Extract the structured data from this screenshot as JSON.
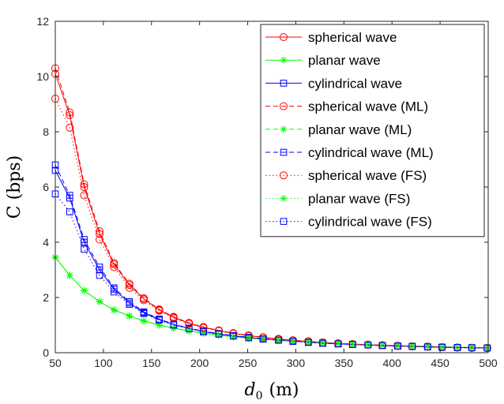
{
  "chart_data": {
    "type": "line",
    "title": "",
    "xlabel": "d_0 (m)",
    "xlabel_main": "d",
    "xlabel_sub": "0",
    "xlabel_unit": "(m)",
    "ylabel": "C (bps)",
    "xlim": [
      50,
      500
    ],
    "ylim": [
      0,
      12
    ],
    "xticks": [
      50,
      100,
      150,
      200,
      250,
      300,
      350,
      400,
      450,
      500
    ],
    "yticks": [
      0,
      2,
      4,
      6,
      8,
      10,
      12
    ],
    "grid": false,
    "legend_position": "top-right",
    "x": [
      50,
      65,
      80,
      96,
      111,
      127,
      142,
      158,
      173,
      189,
      204,
      220,
      235,
      251,
      266,
      282,
      297,
      313,
      328,
      344,
      359,
      375,
      390,
      406,
      421,
      437,
      452,
      468,
      483,
      499
    ],
    "series": [
      {
        "name": "spherical wave",
        "color": "#ff0000",
        "dash": "",
        "marker": "circle",
        "values": [
          10.1,
          8.6,
          6.0,
          4.3,
          3.2,
          2.45,
          1.95,
          1.55,
          1.28,
          1.07,
          0.92,
          0.8,
          0.7,
          0.62,
          0.55,
          0.5,
          0.45,
          0.41,
          0.37,
          0.34,
          0.31,
          0.29,
          0.27,
          0.25,
          0.23,
          0.22,
          0.2,
          0.19,
          0.18,
          0.17
        ]
      },
      {
        "name": "planar wave",
        "color": "#00ff00",
        "dash": "",
        "marker": "star",
        "values": [
          3.45,
          2.8,
          2.25,
          1.85,
          1.55,
          1.33,
          1.15,
          1.0,
          0.89,
          0.79,
          0.71,
          0.64,
          0.58,
          0.53,
          0.49,
          0.45,
          0.42,
          0.39,
          0.36,
          0.34,
          0.31,
          0.29,
          0.27,
          0.26,
          0.24,
          0.23,
          0.21,
          0.2,
          0.19,
          0.18
        ]
      },
      {
        "name": "cylindrical wave",
        "color": "#0000ff",
        "dash": "",
        "marker": "square",
        "values": [
          6.6,
          5.6,
          4.0,
          3.0,
          2.3,
          1.8,
          1.45,
          1.2,
          1.02,
          0.88,
          0.77,
          0.68,
          0.61,
          0.55,
          0.5,
          0.46,
          0.42,
          0.38,
          0.35,
          0.32,
          0.3,
          0.28,
          0.26,
          0.24,
          0.23,
          0.21,
          0.2,
          0.19,
          0.18,
          0.17
        ]
      },
      {
        "name": "spherical wave (ML)",
        "color": "#ff0000",
        "dash": "6,4",
        "marker": "circle",
        "values": [
          10.3,
          8.7,
          6.1,
          4.4,
          3.25,
          2.5,
          1.97,
          1.57,
          1.3,
          1.08,
          0.93,
          0.81,
          0.71,
          0.63,
          0.56,
          0.5,
          0.45,
          0.41,
          0.37,
          0.34,
          0.31,
          0.29,
          0.27,
          0.25,
          0.23,
          0.22,
          0.2,
          0.19,
          0.18,
          0.17
        ]
      },
      {
        "name": "planar wave (ML)",
        "color": "#00ff00",
        "dash": "6,4",
        "marker": "star",
        "values": [
          3.45,
          2.8,
          2.25,
          1.85,
          1.55,
          1.33,
          1.15,
          1.0,
          0.89,
          0.79,
          0.71,
          0.64,
          0.58,
          0.53,
          0.49,
          0.45,
          0.42,
          0.39,
          0.36,
          0.34,
          0.31,
          0.29,
          0.27,
          0.26,
          0.24,
          0.23,
          0.21,
          0.2,
          0.19,
          0.18
        ]
      },
      {
        "name": "cylindrical wave (ML)",
        "color": "#0000ff",
        "dash": "6,4",
        "marker": "square",
        "values": [
          6.8,
          5.7,
          4.1,
          3.1,
          2.35,
          1.85,
          1.48,
          1.22,
          1.03,
          0.89,
          0.78,
          0.69,
          0.62,
          0.56,
          0.5,
          0.46,
          0.42,
          0.38,
          0.35,
          0.32,
          0.3,
          0.28,
          0.26,
          0.24,
          0.23,
          0.21,
          0.2,
          0.19,
          0.18,
          0.17
        ]
      },
      {
        "name": "spherical wave (FS)",
        "color": "#ff0000",
        "dash": "1.5,3",
        "marker": "circle",
        "values": [
          9.2,
          8.15,
          5.7,
          4.1,
          3.1,
          2.35,
          1.9,
          1.52,
          1.25,
          1.05,
          0.9,
          0.79,
          0.69,
          0.61,
          0.55,
          0.49,
          0.45,
          0.41,
          0.37,
          0.34,
          0.31,
          0.29,
          0.27,
          0.25,
          0.23,
          0.22,
          0.2,
          0.19,
          0.18,
          0.17
        ]
      },
      {
        "name": "planar wave (FS)",
        "color": "#00ff00",
        "dash": "1.5,3",
        "marker": "star",
        "values": [
          3.45,
          2.8,
          2.25,
          1.85,
          1.55,
          1.33,
          1.15,
          1.0,
          0.89,
          0.79,
          0.71,
          0.64,
          0.58,
          0.53,
          0.49,
          0.45,
          0.42,
          0.39,
          0.36,
          0.34,
          0.31,
          0.29,
          0.27,
          0.26,
          0.24,
          0.23,
          0.21,
          0.2,
          0.19,
          0.18
        ]
      },
      {
        "name": "cylindrical wave (FS)",
        "color": "#0000ff",
        "dash": "1.5,3",
        "marker": "square",
        "values": [
          5.75,
          5.1,
          3.75,
          2.8,
          2.2,
          1.75,
          1.42,
          1.18,
          1.0,
          0.87,
          0.76,
          0.67,
          0.6,
          0.54,
          0.49,
          0.45,
          0.41,
          0.37,
          0.34,
          0.32,
          0.3,
          0.28,
          0.26,
          0.24,
          0.23,
          0.21,
          0.2,
          0.19,
          0.18,
          0.17
        ]
      }
    ]
  }
}
